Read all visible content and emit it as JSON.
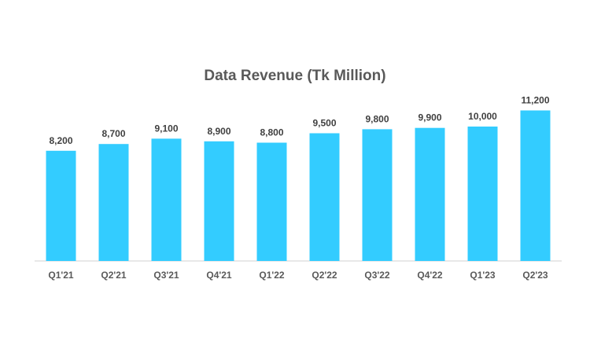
{
  "chart_data": {
    "type": "bar",
    "title": "Data Revenue (Tk Million)",
    "categories": [
      "Q1'21",
      "Q2'21",
      "Q3'21",
      "Q4'21",
      "Q1'22",
      "Q2'22",
      "Q3'22",
      "Q4'22",
      "Q1'23",
      "Q2'23"
    ],
    "values": [
      8200,
      8700,
      9100,
      8900,
      8800,
      9500,
      9800,
      9900,
      10000,
      11200
    ],
    "data_labels": [
      "8,200",
      "8,700",
      "9,100",
      "8,900",
      "8,800",
      "9,500",
      "9,800",
      "9,900",
      "10,000",
      "11,200"
    ],
    "xlabel": "",
    "ylabel": "",
    "ylim": [
      0,
      12000
    ],
    "grid": false,
    "legend": "none",
    "bar_color": "#33CCFF",
    "axis_color": "#D9D9D9"
  }
}
